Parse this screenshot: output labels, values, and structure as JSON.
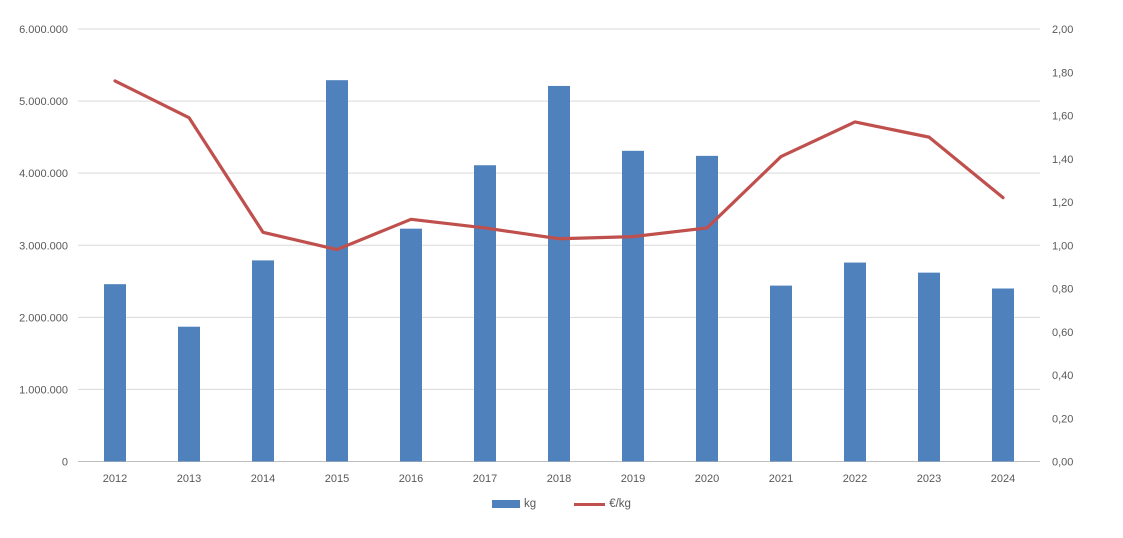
{
  "colors": {
    "bar": "#4f81bd",
    "line": "#c0504d",
    "gridline": "#d9d9d9",
    "axis_line": "#bfbfbf",
    "text": "#595959",
    "background": "#ffffff"
  },
  "chart_data": {
    "type": "combo",
    "subtypes": [
      "bar",
      "line"
    ],
    "title": "",
    "xlabel": "",
    "ylabel_left": "",
    "ylabel_right": "",
    "grid": true,
    "legend_position": "bottom",
    "categories": [
      "2012",
      "2013",
      "2014",
      "2015",
      "2016",
      "2017",
      "2018",
      "2019",
      "2020",
      "2021",
      "2022",
      "2023",
      "2024"
    ],
    "series": [
      {
        "name": "kg",
        "type": "bar",
        "axis": "left",
        "color": "#4f81bd",
        "values": [
          2460000,
          1870000,
          2790000,
          5290000,
          3230000,
          4110000,
          5210000,
          4310000,
          4240000,
          2440000,
          2760000,
          2620000,
          2400000
        ]
      },
      {
        "name": "€/kg",
        "type": "line",
        "axis": "right",
        "color": "#c0504d",
        "values": [
          1.76,
          1.59,
          1.06,
          0.98,
          1.12,
          1.08,
          1.03,
          1.04,
          1.08,
          1.41,
          1.57,
          1.5,
          1.22
        ]
      }
    ],
    "left_axis": {
      "min": 0,
      "max": 6000000,
      "step": 1000000,
      "tick_labels": [
        "0",
        "1.000.000",
        "2.000.000",
        "3.000.000",
        "4.000.000",
        "5.000.000",
        "6.000.000"
      ]
    },
    "right_axis": {
      "min": 0,
      "max": 2,
      "step": 0.2,
      "tick_labels": [
        "0,00",
        "0,20",
        "0,40",
        "0,60",
        "0,80",
        "1,00",
        "1,20",
        "1,40",
        "1,60",
        "1,80",
        "2,00"
      ]
    },
    "legend": [
      {
        "label": "kg",
        "marker": "square",
        "color": "#4f81bd"
      },
      {
        "label": "€/kg",
        "marker": "line",
        "color": "#c0504d"
      }
    ]
  }
}
